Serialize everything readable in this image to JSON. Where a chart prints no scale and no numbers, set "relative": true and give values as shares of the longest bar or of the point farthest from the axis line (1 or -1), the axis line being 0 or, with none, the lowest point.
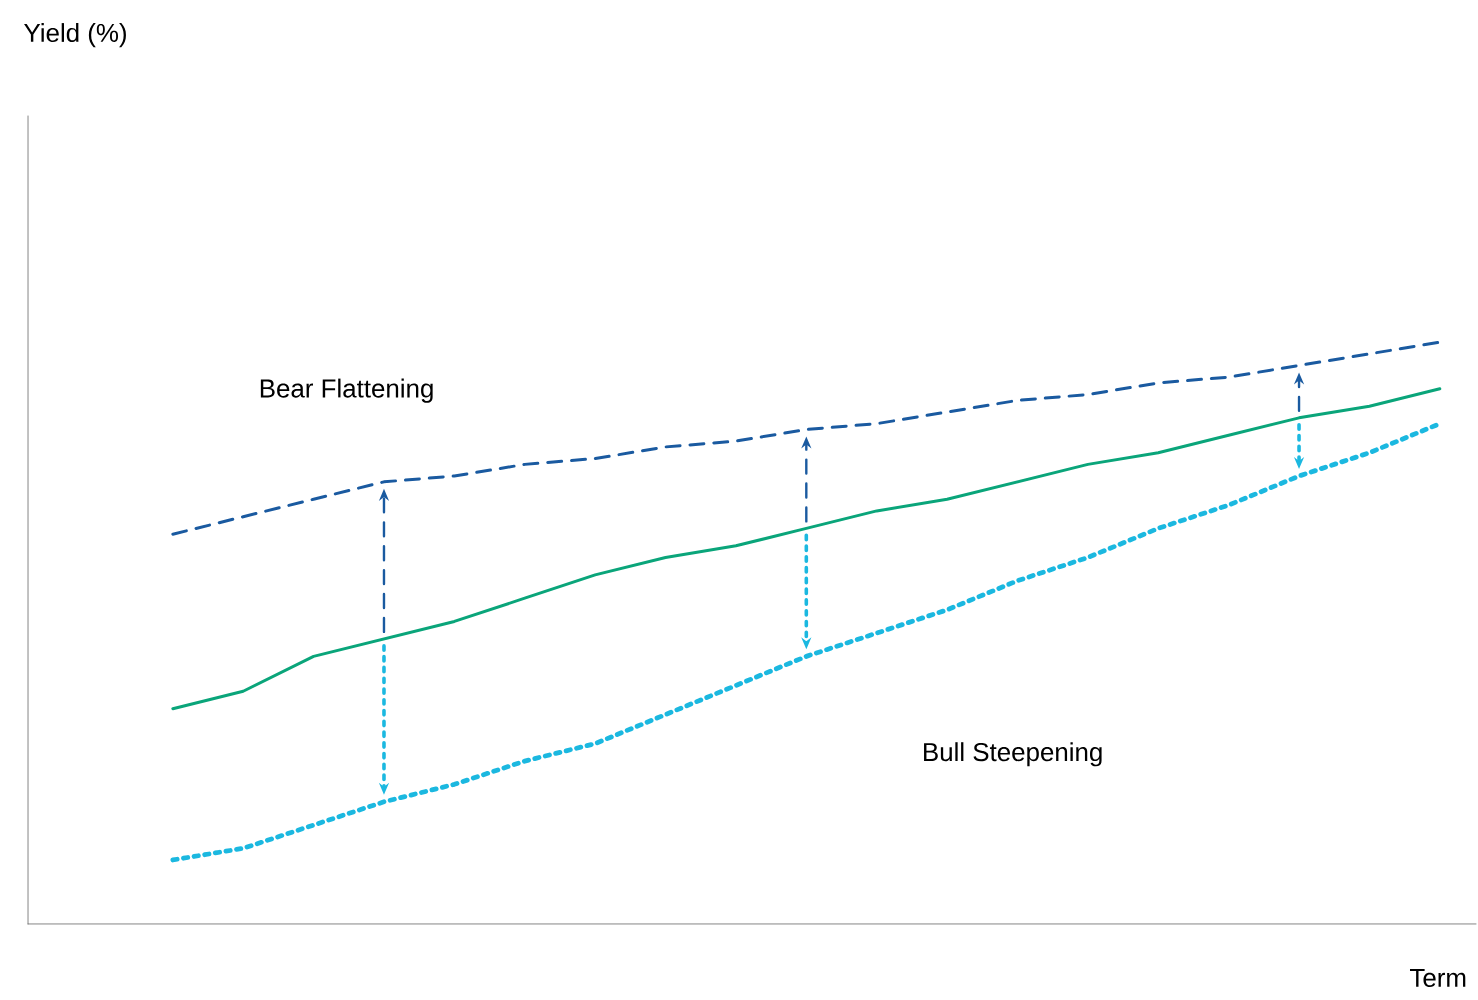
{
  "chart_data": {
    "type": "line",
    "relative": true,
    "xlabel": "Term",
    "marker": "none",
    "categories": [
      null,
      null,
      null,
      null,
      null,
      null,
      null,
      null,
      null,
      null,
      null,
      null,
      null,
      null,
      null,
      null,
      null,
      null,
      null
    ],
    "series": [
      {
        "color": "#1a5aa0",
        "line_style": "dashed",
        "values": [
          0.67,
          0.7,
          0.73,
          0.76,
          0.77,
          0.79,
          0.8,
          0.82,
          0.83,
          0.85,
          0.86,
          0.88,
          0.9,
          0.91,
          0.93,
          0.94,
          0.96,
          0.98,
          1
        ]
      },
      {
        "color": "#0aa57a",
        "line_style": "solid",
        "values": [
          0.37,
          0.4,
          0.46,
          0.49,
          0.52,
          0.56,
          0.6,
          0.63,
          0.65,
          0.68,
          0.71,
          0.73,
          0.76,
          0.79,
          0.81,
          0.84,
          0.87,
          0.89,
          0.92
        ]
      },
      {
        "color": "#1bb8e0",
        "line_style": "dotted",
        "values": [
          0.11,
          0.13,
          0.17,
          0.21,
          0.24,
          0.28,
          0.31,
          0.36,
          0.41,
          0.46,
          0.5,
          0.54,
          0.59,
          0.63,
          0.68,
          0.72,
          0.77,
          0.81,
          0.86
        ]
      }
    ],
    "annotations": [
      "Yield (%)",
      "Bear Flattening",
      "Bull Steepening"
    ]
  }
}
